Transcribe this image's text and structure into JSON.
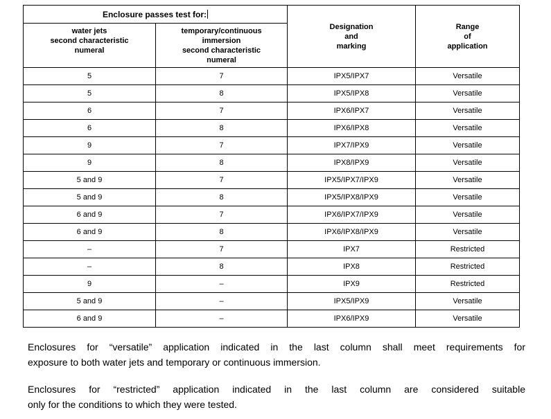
{
  "table": {
    "header": {
      "title": "Enclosure passes test for:",
      "water_jets": "water jets\nsecond characteristic\nnumeral",
      "immersion": "temporary/continuous\nimmersion\nsecond characteristic\nnumeral",
      "designation": "Designation\nand\nmarking",
      "range": "Range\nof\napplication"
    },
    "rows": [
      [
        "5",
        "7",
        "IPX5/IPX7",
        "Versatile"
      ],
      [
        "5",
        "8",
        "IPX5/IPX8",
        "Versatile"
      ],
      [
        "6",
        "7",
        "IPX6/IPX7",
        "Versatile"
      ],
      [
        "6",
        "8",
        "IPX6/IPX8",
        "Versatile"
      ],
      [
        "9",
        "7",
        "IPX7/IPX9",
        "Versatile"
      ],
      [
        "9",
        "8",
        "IPX8/IPX9",
        "Versatile"
      ],
      [
        "5 and 9",
        "7",
        "IPX5/IPX7/IPX9",
        "Versatile"
      ],
      [
        "5 and 9",
        "8",
        "IPX5/IPX8/IPX9",
        "Versatile"
      ],
      [
        "6 and 9",
        "7",
        "IPX6/IPX7/IPX9",
        "Versatile"
      ],
      [
        "6 and 9",
        "8",
        "IPX6/IPX8/IPX9",
        "Versatile"
      ],
      [
        "–",
        "7",
        "IPX7",
        "Restricted"
      ],
      [
        "–",
        "8",
        "IPX8",
        "Restricted"
      ],
      [
        "9",
        "–",
        "IPX9",
        "Restricted"
      ],
      [
        "5 and 9",
        "–",
        "IPX5/IPX9",
        "Versatile"
      ],
      [
        "6 and 9",
        "–",
        "IPX6/IPX9",
        "Versatile"
      ]
    ]
  },
  "paragraphs": [
    {
      "lines": [
        "Enclosures for “versatile” application indicated in the last column shall meet requirements for",
        "exposure to both water jets and temporary or continuous immersion."
      ]
    },
    {
      "lines": [
        "Enclosures for “restricted” application indicated in the last column are considered suitable",
        "only for the conditions to which they were tested."
      ]
    }
  ],
  "colors": {
    "text": "#000000",
    "background": "#ffffff",
    "border": "#000000"
  }
}
